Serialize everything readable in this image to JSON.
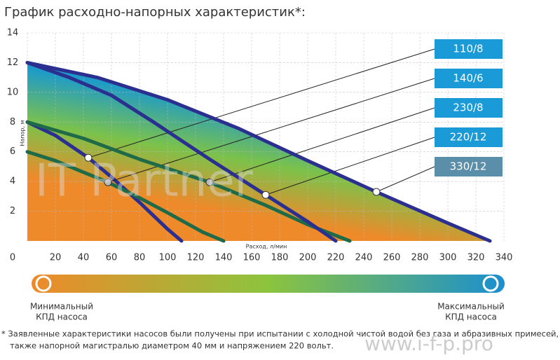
{
  "chart_data": {
    "type": "line",
    "title": "График расходно-напорных характеристик*:",
    "x_label": "Расход, л/мин",
    "y_label": "Напор, м",
    "xlim": [
      0,
      340
    ],
    "xticks": [
      0,
      20,
      40,
      60,
      80,
      100,
      120,
      140,
      160,
      180,
      200,
      220,
      240,
      260,
      280,
      300,
      320,
      340
    ],
    "ylim": [
      0,
      14
    ],
    "yticks": [
      2,
      4,
      6,
      8,
      10,
      12,
      14
    ],
    "grid": true,
    "series": [
      {
        "name": "110/8",
        "color": "#2b2f8f",
        "box_color": "#1a9ad6",
        "x": [
          0,
          20,
          43.5,
          60,
          80,
          100,
          110
        ],
        "values": [
          8,
          7.1,
          5.6,
          4.3,
          2.6,
          0.8,
          0
        ],
        "marker": {
          "x": 43.5,
          "y": 5.6
        }
      },
      {
        "name": "140/6",
        "color": "#1f6b48",
        "box_color": "#1a9ad6",
        "x": [
          0,
          20,
          57.5,
          80,
          100,
          125,
          140
        ],
        "values": [
          6,
          5.4,
          3.95,
          2.9,
          1.9,
          0.6,
          0
        ],
        "marker": {
          "x": 57.5,
          "y": 3.95
        }
      },
      {
        "name": "230/8",
        "color": "#1f6b48",
        "box_color": "#1a9ad6",
        "x": [
          0,
          40,
          80,
          130,
          170,
          200,
          230
        ],
        "values": [
          8,
          6.9,
          5.5,
          3.95,
          2.4,
          1.1,
          0
        ],
        "marker": {
          "x": 130,
          "y": 3.95
        }
      },
      {
        "name": "220/12",
        "color": "#2b2f8f",
        "box_color": "#1a9ad6",
        "x": [
          0,
          30,
          60,
          90,
          130,
          170,
          200,
          220
        ],
        "values": [
          12,
          11,
          9.8,
          8,
          5.5,
          3.1,
          1.3,
          0
        ],
        "marker": {
          "x": 170,
          "y": 3.1
        }
      },
      {
        "name": "330/12",
        "color": "#2b2f8f",
        "box_color": "#5b8ea8",
        "x": [
          0,
          50,
          100,
          150,
          200,
          249,
          300,
          330
        ],
        "values": [
          12,
          11,
          9.5,
          7.6,
          5.4,
          3.3,
          1.2,
          0
        ],
        "marker": {
          "x": 249,
          "y": 3.3
        }
      }
    ]
  },
  "efficiency_bar": {
    "min_label": [
      "Минимальный",
      "КПД насоса"
    ],
    "max_label": [
      "Максимальный",
      "КПД насоса"
    ]
  },
  "footnote": [
    "* Заявленные характеристики насосов были получены при испытании с холодной чистой водой без газа и абразивных примесей, а",
    "также напорной магистралью диаметром 40 мм и напряжением 220 вольт."
  ],
  "watermarks": [
    "IT Partner",
    "www.i-f-p.pro"
  ]
}
